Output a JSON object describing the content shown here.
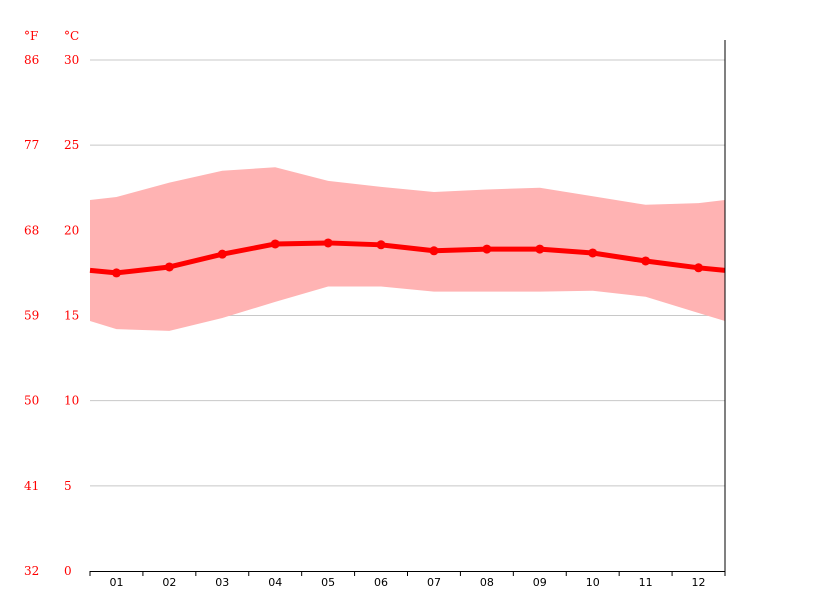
{
  "chart_data": {
    "type": "line",
    "unit_labels": {
      "fahrenheit": "°F",
      "celsius": "°C"
    },
    "categories": [
      "01",
      "02",
      "03",
      "04",
      "05",
      "06",
      "07",
      "08",
      "09",
      "10",
      "11",
      "12"
    ],
    "ylim": [
      0,
      30
    ],
    "y_ticks_c": [
      "0",
      "5",
      "10",
      "15",
      "20",
      "25",
      "30"
    ],
    "y_ticks_f": [
      "32",
      "41",
      "50",
      "59",
      "68",
      "77",
      "86"
    ],
    "grid": true,
    "series": [
      {
        "role": "mean",
        "values": [
          17.5,
          17.85,
          18.6,
          19.2,
          19.26,
          19.15,
          18.8,
          18.9,
          18.9,
          18.67,
          18.2,
          17.8
        ],
        "color": "#ff0000"
      },
      {
        "role": "max",
        "values": [
          21.96,
          22.8,
          23.5,
          23.7,
          22.9,
          22.55,
          22.25,
          22.4,
          22.5,
          22.0,
          21.5,
          21.6
        ],
        "color": "#ffb3b3"
      },
      {
        "role": "min",
        "values": [
          14.2,
          14.1,
          14.85,
          15.8,
          16.7,
          16.7,
          16.4,
          16.4,
          16.4,
          16.45,
          16.1,
          15.15
        ],
        "color": "#ffb3b3"
      }
    ]
  }
}
